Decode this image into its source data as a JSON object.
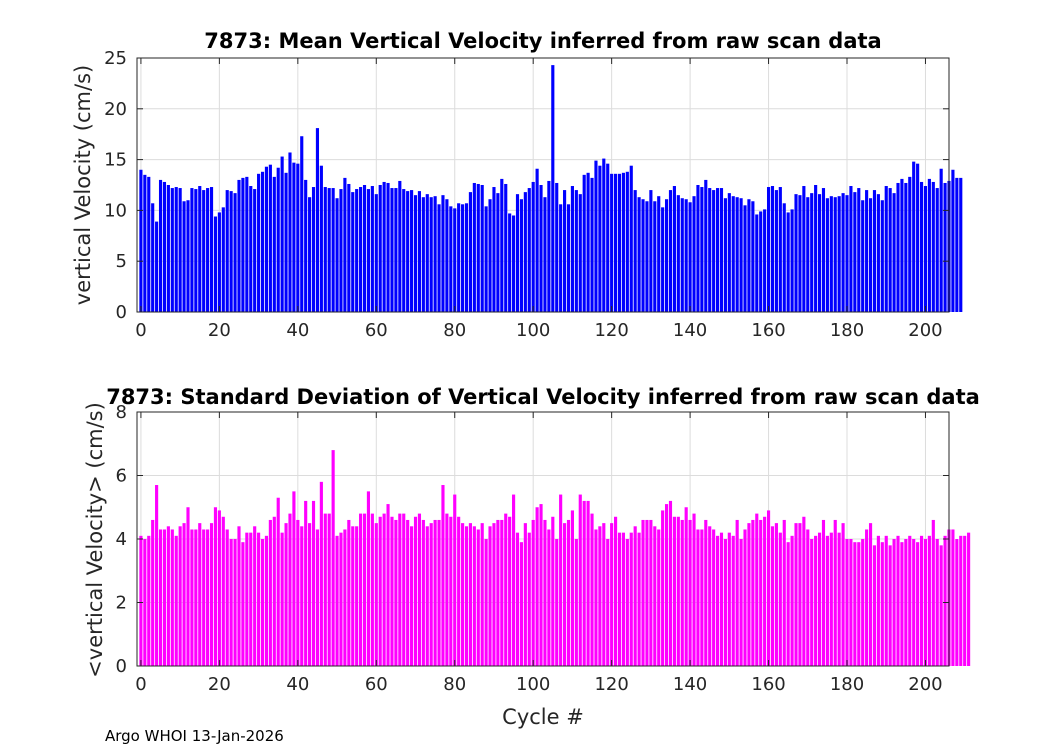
{
  "footer": "Argo WHOI 13-Jan-2026",
  "chart_data": [
    {
      "type": "bar",
      "title": "7873: Mean Vertical Velocity inferred from raw scan data",
      "xlabel": "",
      "ylabel": "vertical Velocity (cm/s)",
      "xlim": [
        -1,
        206
      ],
      "ylim": [
        0,
        25
      ],
      "xticks": [
        0,
        20,
        40,
        60,
        80,
        100,
        120,
        140,
        160,
        180,
        200
      ],
      "yticks": [
        0,
        5,
        10,
        15,
        20,
        25
      ],
      "grid": true,
      "color": "#0000ff",
      "x_start": 0,
      "values": [
        14.0,
        13.5,
        13.3,
        10.7,
        8.9,
        13.0,
        12.8,
        12.5,
        12.2,
        12.3,
        12.2,
        10.9,
        11.0,
        12.2,
        12.1,
        12.4,
        12.0,
        12.2,
        12.3,
        9.4,
        9.8,
        10.3,
        12.0,
        11.9,
        11.7,
        13.0,
        13.2,
        13.3,
        12.4,
        12.1,
        13.6,
        13.8,
        14.3,
        14.5,
        13.3,
        14.2,
        15.3,
        13.7,
        15.7,
        14.7,
        14.6,
        17.3,
        13.0,
        11.3,
        12.3,
        18.1,
        14.4,
        12.3,
        12.2,
        12.2,
        11.2,
        12.1,
        13.2,
        12.6,
        11.8,
        12.1,
        12.3,
        12.5,
        12.1,
        12.4,
        11.6,
        12.5,
        12.8,
        12.7,
        12.2,
        12.2,
        12.9,
        12.1,
        11.9,
        12.0,
        11.5,
        11.9,
        11.3,
        11.6,
        11.3,
        11.4,
        10.6,
        11.5,
        11.1,
        10.4,
        10.2,
        10.7,
        10.6,
        10.7,
        11.8,
        12.7,
        12.6,
        12.5,
        10.4,
        11.1,
        12.3,
        11.7,
        13.1,
        12.6,
        9.7,
        9.5,
        11.6,
        11.1,
        11.8,
        12.2,
        12.8,
        14.1,
        12.5,
        11.3,
        12.9,
        24.3,
        12.7,
        10.6,
        12.0,
        10.6,
        12.4,
        12.0,
        11.6,
        13.5,
        13.7,
        13.2,
        14.9,
        14.4,
        15.1,
        14.6,
        13.6,
        13.6,
        13.6,
        13.7,
        13.8,
        14.4,
        12.0,
        11.3,
        11.1,
        10.9,
        12.0,
        10.9,
        11.4,
        10.3,
        11.1,
        12.0,
        12.4,
        11.5,
        11.2,
        11.1,
        10.8,
        11.4,
        12.5,
        12.3,
        13.0,
        12.2,
        12.0,
        12.2,
        12.2,
        11.2,
        11.7,
        11.4,
        11.3,
        11.2,
        10.5,
        11.1,
        10.9,
        9.6,
        9.9,
        10.1,
        12.3,
        12.4,
        12.0,
        12.3,
        10.7,
        9.8,
        10.1,
        11.6,
        11.5,
        12.4,
        11.3,
        11.7,
        12.5,
        11.6,
        12.2,
        11.2,
        11.4,
        11.3,
        11.4,
        11.7,
        11.5,
        12.4,
        11.8,
        12.2,
        11.0,
        12.0,
        11.2,
        12.0,
        11.6,
        11.0,
        12.4,
        12.2,
        11.7,
        12.7,
        13.1,
        12.7,
        13.3,
        14.8,
        14.6,
        12.8,
        12.4,
        13.1,
        12.8,
        12.2,
        14.1,
        12.7,
        12.9,
        14.0,
        13.2,
        13.2
      ]
    },
    {
      "type": "bar",
      "title": "7873: Standard Deviation of Vertical Velocity inferred from raw scan data",
      "xlabel": "Cycle #",
      "ylabel": "<vertical Velocity> (cm/s)",
      "xlim": [
        -1,
        206
      ],
      "ylim": [
        0,
        8
      ],
      "xticks": [
        0,
        20,
        40,
        60,
        80,
        100,
        120,
        140,
        160,
        180,
        200
      ],
      "yticks": [
        0,
        2,
        4,
        6,
        8
      ],
      "grid": true,
      "color": "#ff00ff",
      "x_start": 0,
      "values": [
        4.1,
        4.0,
        4.1,
        4.6,
        5.7,
        4.3,
        4.3,
        4.4,
        4.3,
        4.1,
        4.4,
        4.5,
        5.0,
        4.3,
        4.3,
        4.5,
        4.3,
        4.3,
        4.5,
        5.0,
        4.9,
        4.7,
        4.3,
        4.0,
        4.0,
        4.4,
        3.9,
        4.2,
        4.2,
        4.4,
        4.2,
        4.0,
        4.1,
        4.6,
        4.7,
        5.3,
        4.2,
        4.5,
        4.8,
        5.5,
        4.6,
        4.4,
        5.2,
        4.5,
        5.2,
        4.3,
        5.8,
        4.8,
        4.8,
        6.8,
        4.1,
        4.2,
        4.3,
        4.6,
        4.4,
        4.4,
        4.8,
        4.8,
        5.5,
        4.8,
        4.5,
        4.7,
        4.8,
        5.1,
        4.7,
        4.6,
        4.8,
        4.8,
        4.6,
        4.4,
        4.7,
        4.8,
        4.6,
        4.4,
        4.5,
        4.6,
        4.6,
        5.7,
        4.8,
        4.7,
        5.4,
        4.7,
        4.5,
        4.4,
        4.5,
        4.4,
        4.3,
        4.5,
        4.0,
        4.4,
        4.5,
        4.6,
        4.6,
        4.8,
        4.7,
        5.4,
        4.2,
        3.9,
        4.5,
        4.2,
        4.6,
        5.0,
        5.1,
        4.6,
        4.3,
        4.7,
        4.0,
        5.4,
        4.5,
        4.6,
        4.9,
        4.0,
        5.4,
        5.2,
        5.2,
        4.8,
        4.3,
        4.4,
        4.5,
        4.0,
        4.5,
        4.7,
        4.2,
        4.2,
        4.0,
        4.2,
        4.4,
        4.2,
        4.6,
        4.6,
        4.6,
        4.4,
        4.3,
        4.9,
        5.1,
        5.2,
        4.7,
        4.7,
        4.6,
        5.0,
        4.6,
        4.8,
        4.3,
        4.3,
        4.6,
        4.4,
        4.3,
        4.1,
        4.2,
        4.0,
        4.2,
        4.1,
        4.6,
        4.0,
        4.3,
        4.5,
        4.6,
        4.8,
        4.6,
        4.7,
        4.9,
        4.4,
        4.5,
        4.2,
        4.6,
        3.9,
        4.1,
        4.5,
        4.5,
        4.7,
        4.3,
        4.0,
        4.1,
        4.2,
        4.6,
        4.1,
        4.2,
        4.6,
        4.2,
        4.5,
        4.0,
        4.0,
        3.9,
        3.9,
        4.0,
        4.3,
        4.5,
        3.8,
        4.1,
        3.9,
        4.1,
        3.8,
        4.0,
        4.1,
        3.9,
        4.0,
        4.1,
        4.0,
        3.9,
        4.1,
        4.0,
        4.1,
        4.6,
        4.0,
        3.8,
        4.1,
        4.3,
        4.3,
        4.0,
        4.1,
        4.1,
        4.2
      ]
    }
  ]
}
